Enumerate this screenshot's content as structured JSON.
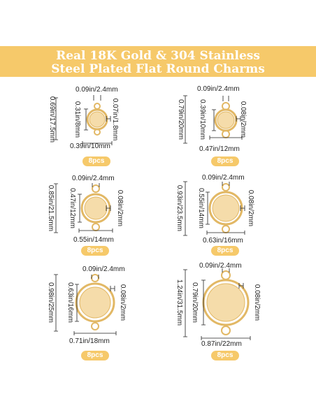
{
  "title": {
    "line1": "Real 18K Gold & 304 Stainless",
    "line2": "Steel Plated Flat Round Charms"
  },
  "colors": {
    "banner": "#f6c96a",
    "gold": "#e2b865",
    "gold_fill": "#f5dcaa",
    "badge": "#f6c96a"
  },
  "items": [
    {
      "top": "0.09in/2.4mm",
      "thick": "0.07in/1.8mm",
      "height": "0.69in/17.5mm",
      "tray": "0.31in/8mm",
      "width": "0.39in/10mm",
      "badge": "8pcs"
    },
    {
      "top": "0.09in/2.4mm",
      "thick": "0.08in/2mm",
      "height": "0.79in/20mm",
      "tray": "0.39in/10mm",
      "width": "0.47in/12mm",
      "badge": "8pcs"
    },
    {
      "top": "0.09in/2.4mm",
      "thick": "0.08in/2mm",
      "height": "0.85in/21.5mm",
      "tray": "0.47in/12mm",
      "width": "0.55in/14mm",
      "badge": "8pcs"
    },
    {
      "top": "0.09in/2.4mm",
      "thick": "0.08in/2mm",
      "height": "0.93in/23.5mm",
      "tray": "0.55in/14mm",
      "width": "0.63in/16mm",
      "badge": "8pcs"
    },
    {
      "top": "0.09in/2.4mm",
      "thick": "0.08in/2mm",
      "height": "0.98in/25mm",
      "tray": "0.63in/16mm",
      "width": "0.71in/18mm",
      "badge": "8pcs"
    },
    {
      "top": "0.09in/2.4mm",
      "thick": "0.08in/2mm",
      "height": "1.24in/31.5mm",
      "tray": "0.79in/20mm",
      "width": "0.87in/22mm",
      "badge": "8pcs"
    }
  ]
}
